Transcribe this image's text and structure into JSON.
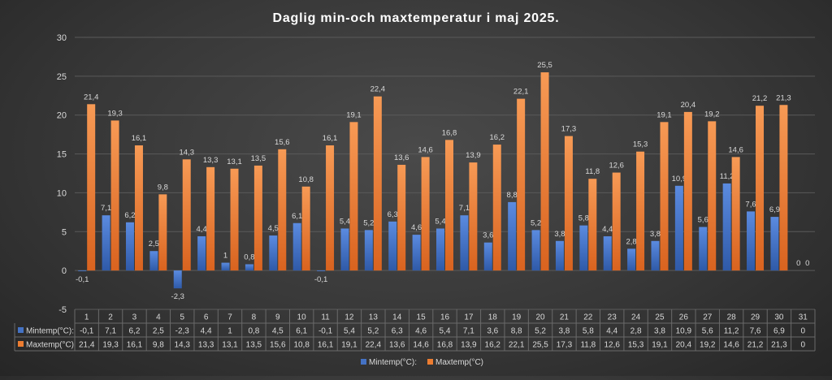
{
  "chart_data": {
    "type": "bar",
    "title": "Daglig min-och maxtemperatur i maj 2025.",
    "categories": [
      "1",
      "2",
      "3",
      "4",
      "5",
      "6",
      "7",
      "8",
      "9",
      "10",
      "11",
      "12",
      "13",
      "14",
      "15",
      "16",
      "17",
      "18",
      "19",
      "20",
      "21",
      "22",
      "23",
      "24",
      "25",
      "26",
      "27",
      "28",
      "29",
      "30",
      "31"
    ],
    "series": [
      {
        "name": "Mintemp(°C):",
        "color": "#4472c4",
        "values": [
          -0.1,
          7.1,
          6.2,
          2.5,
          -2.3,
          4.4,
          1,
          0.8,
          4.5,
          6.1,
          -0.1,
          5.4,
          5.2,
          6.3,
          4.6,
          5.4,
          7.1,
          3.6,
          8.8,
          5.2,
          3.8,
          5.8,
          4.4,
          2.8,
          3.8,
          10.9,
          5.6,
          11.2,
          7.6,
          6.9,
          0
        ],
        "labels": [
          "-0,1",
          "7,1",
          "6,2",
          "2,5",
          "-2,3",
          "4,4",
          "1",
          "0,8",
          "4,5",
          "6,1",
          "-0,1",
          "5,4",
          "5,2",
          "6,3",
          "4,6",
          "5,4",
          "7,1",
          "3,6",
          "8,8",
          "5,2",
          "3,8",
          "5,8",
          "4,4",
          "2,8",
          "3,8",
          "10,9",
          "5,6",
          "11,2",
          "7,6",
          "6,9",
          "0"
        ]
      },
      {
        "name": "Maxtemp(°C)",
        "color": "#ed7d31",
        "values": [
          21.4,
          19.3,
          16.1,
          9.8,
          14.3,
          13.3,
          13.1,
          13.5,
          15.6,
          10.8,
          16.1,
          19.1,
          22.4,
          13.6,
          14.6,
          16.8,
          13.9,
          16.2,
          22.1,
          25.5,
          17.3,
          11.8,
          12.6,
          15.3,
          19.1,
          20.4,
          19.2,
          14.6,
          21.2,
          21.3,
          0
        ],
        "labels": [
          "21,4",
          "19,3",
          "16,1",
          "9,8",
          "14,3",
          "13,3",
          "13,1",
          "13,5",
          "15,6",
          "10,8",
          "16,1",
          "19,1",
          "22,4",
          "13,6",
          "14,6",
          "16,8",
          "13,9",
          "16,2",
          "22,1",
          "25,5",
          "17,3",
          "11,8",
          "12,6",
          "15,3",
          "19,1",
          "20,4",
          "19,2",
          "14,6",
          "21,2",
          "21,3",
          "0"
        ]
      }
    ],
    "ylim": [
      -5,
      30
    ],
    "yticks": [
      "-5",
      "0",
      "5",
      "10",
      "15",
      "20",
      "25",
      "30"
    ],
    "ytick_values": [
      -5,
      0,
      5,
      10,
      15,
      20,
      25,
      30
    ],
    "grid": true,
    "legend": "bottom",
    "data_table": true
  }
}
